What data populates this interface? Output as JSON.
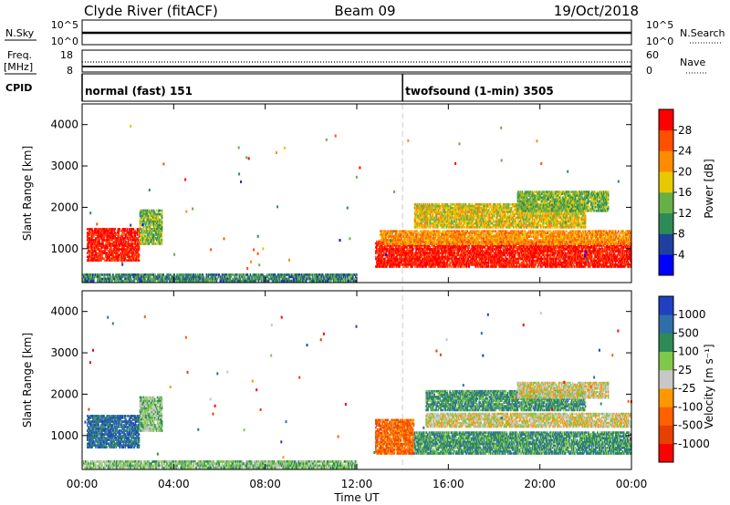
{
  "header": {
    "station": "Clyde River (fitACF)",
    "beam": "Beam 09",
    "date": "19/Oct/2018"
  },
  "strips": {
    "nsky_label": "N.Sky",
    "nsky_ticks": [
      "10^5",
      "10^0"
    ],
    "nsearch_label": "N.Search",
    "nsearch_ticks": [
      "10^5",
      "10^0"
    ],
    "freq_label": "Freq.",
    "freq_unit": "[MHz]",
    "freq_ticks": [
      "18",
      "8"
    ],
    "nave_label": "Nave",
    "nave_ticks": [
      "60",
      "0"
    ],
    "cpid_label": "CPID",
    "cpid_segments": [
      {
        "name": "normal (fast) 151",
        "start_hour": 0,
        "end_hour": 14
      },
      {
        "name": "twofsound (1-min) 3505",
        "start_hour": 14,
        "end_hour": 24
      }
    ]
  },
  "xaxis": {
    "label": "Time UT",
    "ticks": [
      "00:00",
      "04:00",
      "08:00",
      "12:00",
      "16:00",
      "20:00",
      "00:00"
    ]
  },
  "colors": {
    "power_scale": [
      "#0000ff",
      "#2040a0",
      "#2e8b57",
      "#66b046",
      "#e8c800",
      "#ff8c00",
      "#ff5000",
      "#ff0000"
    ],
    "velocity_scale": [
      "#2040c0",
      "#2e6fa8",
      "#2e8b57",
      "#7fc84a",
      "#c8c8c8",
      "#ff9800",
      "#ff6000",
      "#e84000",
      "#ff0000"
    ]
  },
  "chart_data": [
    {
      "type": "heatmap",
      "name": "power",
      "ylabel": "Slant Range [km]",
      "ylim": [
        180,
        4500
      ],
      "yticks": [
        "1000",
        "2000",
        "3000",
        "4000"
      ],
      "xlim": [
        0,
        24
      ],
      "colorbar": {
        "label": "Power [dB]",
        "ticks": [
          "4",
          "8",
          "12",
          "16",
          "20",
          "24",
          "28"
        ],
        "range": [
          0,
          32
        ]
      },
      "regions": [
        {
          "t0": 0.2,
          "t1": 2.5,
          "r0": 700,
          "r1": 1500,
          "level": 7
        },
        {
          "t0": 2.5,
          "t1": 3.5,
          "r0": 1100,
          "r1": 1950,
          "level": 3
        },
        {
          "t0": 0.0,
          "t1": 12.0,
          "r0": 200,
          "r1": 400,
          "level": 2
        },
        {
          "t0": 12.8,
          "t1": 24.0,
          "r0": 550,
          "r1": 1200,
          "level": 7
        },
        {
          "t0": 13.0,
          "t1": 24.0,
          "r0": 1100,
          "r1": 1450,
          "level": 5
        },
        {
          "t0": 14.5,
          "t1": 22.0,
          "r0": 1500,
          "r1": 2100,
          "level": 4
        },
        {
          "t0": 19.0,
          "t1": 23.0,
          "r0": 1900,
          "r1": 2400,
          "level": 3
        }
      ]
    },
    {
      "type": "heatmap",
      "name": "velocity",
      "ylabel": "Slant Range [km]",
      "ylim": [
        180,
        4500
      ],
      "yticks": [
        "1000",
        "2000",
        "3000",
        "4000"
      ],
      "xlim": [
        0,
        24
      ],
      "colorbar": {
        "label": "Velocity [m s⁻¹]",
        "ticks": [
          "1000",
          "500",
          "100",
          "25",
          "-25",
          "-100",
          "-500",
          "-1000"
        ],
        "range": [
          -1000,
          1000
        ]
      },
      "regions": [
        {
          "t0": 0.2,
          "t1": 2.5,
          "r0": 700,
          "r1": 1500,
          "level": 1
        },
        {
          "t0": 2.5,
          "t1": 3.5,
          "r0": 1100,
          "r1": 1950,
          "level": 3
        },
        {
          "t0": 0.0,
          "t1": 12.0,
          "r0": 200,
          "r1": 400,
          "level": 3
        },
        {
          "t0": 12.8,
          "t1": 14.5,
          "r0": 550,
          "r1": 1400,
          "level": 6
        },
        {
          "t0": 14.5,
          "t1": 24.0,
          "r0": 550,
          "r1": 1100,
          "level": 2
        },
        {
          "t0": 15.0,
          "t1": 24.0,
          "r0": 1200,
          "r1": 1550,
          "level": 4
        },
        {
          "t0": 15.0,
          "t1": 22.0,
          "r0": 1600,
          "r1": 2100,
          "level": 2
        },
        {
          "t0": 19.0,
          "t1": 23.0,
          "r0": 1900,
          "r1": 2300,
          "level": 4
        }
      ]
    }
  ]
}
